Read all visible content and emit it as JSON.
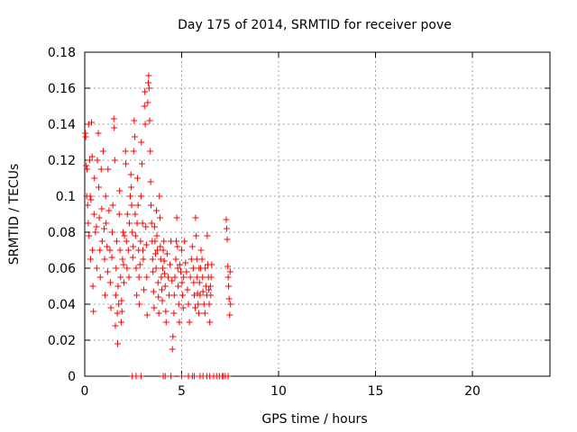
{
  "chart_data": {
    "type": "scatter",
    "title": "Day 175 of 2014, SRMTID for receiver pove",
    "xlabel": "GPS time / hours",
    "ylabel": "SRMTID / TECUs",
    "xlim": [
      0,
      24
    ],
    "ylim": [
      0,
      0.18
    ],
    "x_ticks": [
      0,
      5,
      10,
      15,
      20
    ],
    "x_tick_labels": [
      "0",
      "5",
      "10",
      "15",
      "20"
    ],
    "y_ticks": [
      0,
      0.02,
      0.04,
      0.06,
      0.08,
      0.1,
      0.12,
      0.14,
      0.16,
      0.18
    ],
    "y_tick_labels": [
      "0",
      "0.02",
      "0.04",
      "0.06",
      "0.08",
      "0.1",
      "0.12",
      "0.14",
      "0.16",
      "0.18"
    ],
    "grid": true,
    "marker": "+",
    "colors": {
      "points": "#ff0000",
      "grid": "#a0a0a0",
      "axes": "#000000"
    },
    "series": [
      {
        "points": [
          [
            0.03,
            0.135
          ],
          [
            0.05,
            0.133
          ],
          [
            0.08,
            0.117
          ],
          [
            0.1,
            0.1
          ],
          [
            0.12,
            0.115
          ],
          [
            0.15,
            0.095
          ],
          [
            0.18,
            0.085
          ],
          [
            0.2,
            0.14
          ],
          [
            0.22,
            0.078
          ],
          [
            0.25,
            0.12
          ],
          [
            0.28,
            0.1
          ],
          [
            0.3,
            0.065
          ],
          [
            0.32,
            0.098
          ],
          [
            0.35,
            0.141
          ],
          [
            0.38,
            0.122
          ],
          [
            0.4,
            0.07
          ],
          [
            0.42,
            0.05
          ],
          [
            0.45,
            0.036
          ],
          [
            0.48,
            0.09
          ],
          [
            0.5,
            0.11
          ],
          [
            0.55,
            0.08
          ],
          [
            0.6,
            0.083
          ],
          [
            0.62,
            0.06
          ],
          [
            0.65,
            0.12
          ],
          [
            0.7,
            0.135
          ],
          [
            0.72,
            0.105
          ],
          [
            0.75,
            0.088
          ],
          [
            0.78,
            0.07
          ],
          [
            0.8,
            0.055
          ],
          [
            0.85,
            0.115
          ],
          [
            0.88,
            0.093
          ],
          [
            0.9,
            0.075
          ],
          [
            0.95,
            0.125
          ],
          [
            1.0,
            0.082
          ],
          [
            1.02,
            0.065
          ],
          [
            1.05,
            0.045
          ],
          [
            1.08,
            0.1
          ],
          [
            1.1,
            0.085
          ],
          [
            1.15,
            0.072
          ],
          [
            1.18,
            0.058
          ],
          [
            1.2,
            0.115
          ],
          [
            1.25,
            0.092
          ],
          [
            1.3,
            0.07
          ],
          [
            1.32,
            0.052
          ],
          [
            1.35,
            0.038
          ],
          [
            1.4,
            0.066
          ],
          [
            1.42,
            0.08
          ],
          [
            1.45,
            0.095
          ],
          [
            1.5,
            0.143
          ],
          [
            1.52,
            0.138
          ],
          [
            1.55,
            0.12
          ],
          [
            1.58,
            0.028
          ],
          [
            1.6,
            0.045
          ],
          [
            1.62,
            0.06
          ],
          [
            1.65,
            0.075
          ],
          [
            1.68,
            0.035
          ],
          [
            1.7,
            0.018
          ],
          [
            1.72,
            0.05
          ],
          [
            1.75,
            0.04
          ],
          [
            1.78,
            0.09
          ],
          [
            1.8,
            0.103
          ],
          [
            1.82,
            0.07
          ],
          [
            1.85,
            0.055
          ],
          [
            1.88,
            0.03
          ],
          [
            1.9,
            0.042
          ],
          [
            1.92,
            0.036
          ],
          [
            1.95,
            0.065
          ],
          [
            1.98,
            0.08
          ],
          [
            2.0,
            0.062
          ],
          [
            2.02,
            0.052
          ],
          [
            2.05,
            0.078
          ],
          [
            2.1,
            0.125
          ],
          [
            2.12,
            0.118
          ],
          [
            2.15,
            0.075
          ],
          [
            2.18,
            0.06
          ],
          [
            2.2,
            0.09
          ],
          [
            2.25,
            0.07
          ],
          [
            2.28,
            0.055
          ],
          [
            2.3,
            0.085
          ],
          [
            2.35,
            0.1
          ],
          [
            2.38,
            0.112
          ],
          [
            2.4,
            0.105
          ],
          [
            2.42,
            0.095
          ],
          [
            2.45,
            0.08
          ],
          [
            2.48,
            0.066
          ],
          [
            2.5,
            0.072
          ],
          [
            2.52,
            0.125
          ],
          [
            2.55,
            0.142
          ],
          [
            2.58,
            0.133
          ],
          [
            2.6,
            0.09
          ],
          [
            2.62,
            0.078
          ],
          [
            2.65,
            0.06
          ],
          [
            2.68,
            0.045
          ],
          [
            2.7,
            0.085
          ],
          [
            2.72,
            0.11
          ],
          [
            2.75,
            0.095
          ],
          [
            2.78,
            0.07
          ],
          [
            2.8,
            0.055
          ],
          [
            2.82,
            0.04
          ],
          [
            2.85,
            0.062
          ],
          [
            2.88,
            0.075
          ],
          [
            2.9,
            0.1
          ],
          [
            2.92,
            0.13
          ],
          [
            2.95,
            0.118
          ],
          [
            2.98,
            0.085
          ],
          [
            3.0,
            0.07
          ],
          [
            3.02,
            0.065
          ],
          [
            3.05,
            0.048
          ],
          [
            3.08,
            0.15
          ],
          [
            3.1,
            0.158
          ],
          [
            3.12,
            0.14
          ],
          [
            3.15,
            0.083
          ],
          [
            3.18,
            0.073
          ],
          [
            3.2,
            0.055
          ],
          [
            3.22,
            0.034
          ],
          [
            3.25,
            0.152
          ],
          [
            3.28,
            0.163
          ],
          [
            3.3,
            0.167
          ],
          [
            3.32,
            0.16
          ],
          [
            3.35,
            0.142
          ],
          [
            3.38,
            0.125
          ],
          [
            3.4,
            0.108
          ],
          [
            3.42,
            0.095
          ],
          [
            3.45,
            0.085
          ],
          [
            3.48,
            0.075
          ],
          [
            3.5,
            0.065
          ],
          [
            3.52,
            0.058
          ],
          [
            3.55,
            0.047
          ],
          [
            3.58,
            0.038
          ],
          [
            3.6,
            0.083
          ],
          [
            3.62,
            0.075
          ],
          [
            3.65,
            0.068
          ],
          [
            3.68,
            0.06
          ],
          [
            3.7,
            0.092
          ],
          [
            3.72,
            0.078
          ],
          [
            3.75,
            0.07
          ],
          [
            3.78,
            0.052
          ],
          [
            3.8,
            0.044
          ],
          [
            3.82,
            0.035
          ],
          [
            3.85,
            0.1
          ],
          [
            3.88,
            0.088
          ],
          [
            3.9,
            0.072
          ],
          [
            3.92,
            0.065
          ],
          [
            3.95,
            0.055
          ],
          [
            3.98,
            0.048
          ],
          [
            4.0,
            0.042
          ],
          [
            4.02,
            0.06
          ],
          [
            4.05,
            0.07
          ],
          [
            4.08,
            0.075
          ],
          [
            4.1,
            0.064
          ],
          [
            4.12,
            0.057
          ],
          [
            4.15,
            0.05
          ],
          [
            4.18,
            0.036
          ],
          [
            4.2,
            0.03
          ],
          [
            4.25,
            0.068
          ],
          [
            4.3,
            0.055
          ],
          [
            4.35,
            0.045
          ],
          [
            4.4,
            0.062
          ],
          [
            4.45,
            0.075
          ],
          [
            4.5,
            0.053
          ],
          [
            4.52,
            0.015
          ],
          [
            4.55,
            0.022
          ],
          [
            4.6,
            0.035
          ],
          [
            4.62,
            0.045
          ],
          [
            4.65,
            0.055
          ],
          [
            4.7,
            0.065
          ],
          [
            4.72,
            0.075
          ],
          [
            4.75,
            0.088
          ],
          [
            4.78,
            0.072
          ],
          [
            4.8,
            0.06
          ],
          [
            4.82,
            0.05
          ],
          [
            4.85,
            0.04
          ],
          [
            4.88,
            0.03
          ],
          [
            4.9,
            0.062
          ],
          [
            4.95,
            0.058
          ],
          [
            5.0,
            0.07
          ],
          [
            5.02,
            0.052
          ],
          [
            5.05,
            0.045
          ],
          [
            5.08,
            0.038
          ],
          [
            5.1,
            0.055
          ],
          [
            5.15,
            0.075
          ],
          [
            5.2,
            0.063
          ],
          [
            5.25,
            0.058
          ],
          [
            5.3,
            0.048
          ],
          [
            5.35,
            0.04
          ],
          [
            5.4,
            0.03
          ],
          [
            5.45,
            0.055
          ],
          [
            5.5,
            0.065
          ],
          [
            5.55,
            0.072
          ],
          [
            5.6,
            0.06
          ],
          [
            5.62,
            0.052
          ],
          [
            5.65,
            0.045
          ],
          [
            5.7,
            0.038
          ],
          [
            5.72,
            0.088
          ],
          [
            5.75,
            0.078
          ],
          [
            5.78,
            0.065
          ],
          [
            5.8,
            0.055
          ],
          [
            5.82,
            0.046
          ],
          [
            5.85,
            0.04
          ],
          [
            5.88,
            0.035
          ],
          [
            5.9,
            0.06
          ],
          [
            5.92,
            0.052
          ],
          [
            5.95,
            0.045
          ],
          [
            5.98,
            0.06
          ],
          [
            6.0,
            0.07
          ],
          [
            6.05,
            0.065
          ],
          [
            6.08,
            0.055
          ],
          [
            6.1,
            0.047
          ],
          [
            6.15,
            0.04
          ],
          [
            6.2,
            0.035
          ],
          [
            6.22,
            0.06
          ],
          [
            6.25,
            0.05
          ],
          [
            6.3,
            0.045
          ],
          [
            6.32,
            0.078
          ],
          [
            6.35,
            0.062
          ],
          [
            6.38,
            0.055
          ],
          [
            6.4,
            0.048
          ],
          [
            6.42,
            0.04
          ],
          [
            6.45,
            0.03
          ],
          [
            6.48,
            0.05
          ],
          [
            6.5,
            0.045
          ],
          [
            6.52,
            0.055
          ],
          [
            6.55,
            0.062
          ],
          [
            7.3,
            0.087
          ],
          [
            7.32,
            0.082
          ],
          [
            7.35,
            0.076
          ],
          [
            7.38,
            0.061
          ],
          [
            7.4,
            0.055
          ],
          [
            7.42,
            0.05
          ],
          [
            7.45,
            0.043
          ],
          [
            7.48,
            0.034
          ],
          [
            7.5,
            0.058
          ],
          [
            7.52,
            0.04
          ]
        ]
      }
    ],
    "zero_points_x": [
      2.45,
      2.65,
      2.9,
      4.05,
      4.15,
      4.45,
      5.0,
      5.35,
      5.55,
      5.65,
      5.95,
      6.1,
      6.3,
      6.45,
      6.65,
      6.8,
      6.95,
      7.1,
      7.15,
      7.25,
      7.4
    ]
  }
}
